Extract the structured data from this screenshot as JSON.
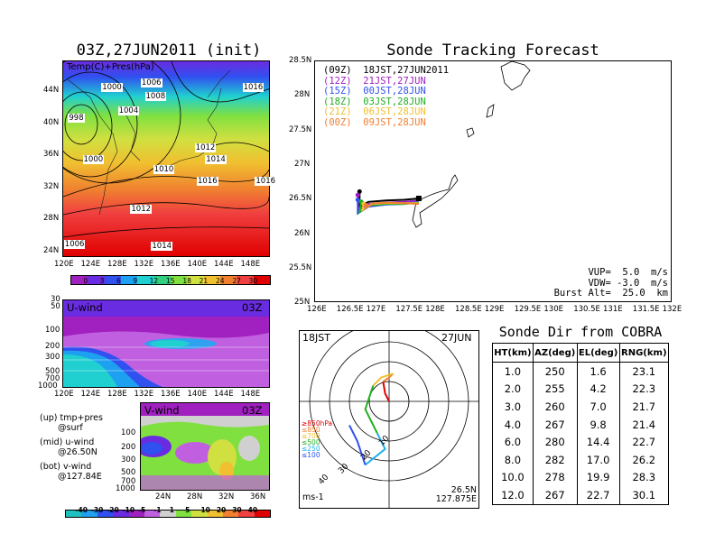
{
  "map_panel": {
    "title": "03Z,27JUN2011 (init)",
    "label": "Temp(C)+Pres(hPa)",
    "lat_ticks": [
      "44N",
      "40N",
      "36N",
      "32N",
      "28N",
      "24N"
    ],
    "lon_ticks": [
      "120E",
      "124E",
      "128E",
      "132E",
      "136E",
      "140E",
      "144E",
      "148E"
    ],
    "pressure_labels": [
      {
        "text": "1000",
        "rx": 0.24,
        "ry": 0.14
      },
      {
        "text": "1006",
        "rx": 0.43,
        "ry": 0.12
      },
      {
        "text": "1008",
        "rx": 0.45,
        "ry": 0.19
      },
      {
        "text": "1004",
        "rx": 0.32,
        "ry": 0.26
      },
      {
        "text": "998",
        "rx": 0.08,
        "ry": 0.3
      },
      {
        "text": "1000",
        "rx": 0.15,
        "ry": 0.51
      },
      {
        "text": "1012",
        "rx": 0.69,
        "ry": 0.45
      },
      {
        "text": "1014",
        "rx": 0.74,
        "ry": 0.51
      },
      {
        "text": "1010",
        "rx": 0.49,
        "ry": 0.56
      },
      {
        "text": "1016",
        "rx": 0.7,
        "ry": 0.62
      },
      {
        "text": "1016",
        "rx": 0.92,
        "ry": 0.14
      },
      {
        "text": "1016",
        "rx": 0.98,
        "ry": 0.62
      },
      {
        "text": "1012",
        "rx": 0.38,
        "ry": 0.76
      },
      {
        "text": "1014",
        "rx": 0.48,
        "ry": 0.95
      },
      {
        "text": "1006",
        "rx": 0.06,
        "ry": 0.94
      }
    ],
    "colorbar_labels": [
      "0",
      "3",
      "6",
      "9",
      "12",
      "15",
      "18",
      "21",
      "24",
      "27",
      "30"
    ],
    "colorbar_colors": [
      "#a020c0",
      "#6a2ce0",
      "#3050f0",
      "#1ea0f0",
      "#20d0d0",
      "#30d080",
      "#80e040",
      "#d0e040",
      "#f0c030",
      "#f08030",
      "#f04040",
      "#e00000"
    ]
  },
  "u_panel": {
    "label": "U-wind",
    "time": "03Z",
    "pressure_ticks": [
      "30",
      "50",
      "100",
      "200",
      "300",
      "500",
      "700",
      "1000"
    ],
    "lon_ticks": [
      "120E",
      "124E",
      "128E",
      "132E",
      "136E",
      "140E",
      "144E",
      "148E"
    ]
  },
  "v_panel": {
    "label": "V-wind",
    "time": "03Z",
    "pressure_ticks": [
      "100",
      "200",
      "300",
      "500",
      "700",
      "1000"
    ],
    "lat_ticks": [
      "24N",
      "28N",
      "32N",
      "36N"
    ],
    "colorbar_labels": [
      "-40",
      "-30",
      "-20",
      "-10",
      "-5",
      "-1",
      "1",
      "5",
      "10",
      "20",
      "30",
      "40"
    ],
    "colorbar_colors": [
      "#20c0c0",
      "#20a0f0",
      "#3050f0",
      "#6a2ce0",
      "#a020c0",
      "#c060e0",
      "#d0d0d0",
      "#80e040",
      "#d0e040",
      "#f0c030",
      "#f08030",
      "#f04040",
      "#e00000"
    ]
  },
  "legend_notes": [
    "(up) tmp+pres",
    "@surf",
    "(mid) u-wind",
    "@26.50N",
    "(bot) v-wind",
    "@127.84E"
  ],
  "track_panel": {
    "title": "Sonde Tracking Forecast",
    "lat_ticks": [
      "28.5N",
      "28N",
      "27.5N",
      "27N",
      "26.5N",
      "26N",
      "25.5N",
      "25N"
    ],
    "lon_ticks": [
      "126E",
      "126.5E",
      "127E",
      "127.5E",
      "128E",
      "128.5E",
      "129E",
      "129.5E",
      "130E",
      "130.5E",
      "131E",
      "131.5E",
      "132E"
    ],
    "legend": [
      {
        "text": "(09Z)  18JST,27JUN2011",
        "color": "#000000"
      },
      {
        "text": "(12Z)  21JST,27JUN",
        "color": "#a020c0"
      },
      {
        "text": "(15Z)  00JST,28JUN",
        "color": "#3050f0"
      },
      {
        "text": "(18Z)  03JST,28JUN",
        "color": "#20b020"
      },
      {
        "text": "(21Z)  06JST,28JUN",
        "color": "#f0c030"
      },
      {
        "text": "(00Z)  09JST,28JUN",
        "color": "#f08030"
      }
    ],
    "params": [
      "VUP=  5.0  m/s",
      "VDW= -3.0  m/s",
      "Burst Alt=  25.0  km"
    ]
  },
  "polar_panel": {
    "time_left": "18JST",
    "date_right": "27JUN",
    "ring_labels": [
      "10",
      "20",
      "30",
      "40"
    ],
    "level_legend": [
      {
        "text": "≥850hPa",
        "color": "#e00000"
      },
      {
        "text": "≤850",
        "color": "#f08030"
      },
      {
        "text": "≤700",
        "color": "#f0c030"
      },
      {
        "text": "≤500",
        "color": "#20b020"
      },
      {
        "text": "≤250",
        "color": "#20b0f0"
      },
      {
        "text": "≤100",
        "color": "#3050f0"
      }
    ],
    "unit": "ms-1",
    "lat": "26.5N",
    "lon": "127.875E"
  },
  "sonde_dir": {
    "title": "Sonde Dir from COBRA",
    "headers": [
      "HT(km)",
      "AZ(deg)",
      "EL(deg)",
      "RNG(km)"
    ],
    "rows": [
      [
        "1.0",
        "250",
        "1.6",
        "23.1"
      ],
      [
        "2.0",
        "255",
        "4.2",
        "22.3"
      ],
      [
        "3.0",
        "260",
        "7.0",
        "21.7"
      ],
      [
        "4.0",
        "267",
        "9.8",
        "21.4"
      ],
      [
        "6.0",
        "280",
        "14.4",
        "22.7"
      ],
      [
        "8.0",
        "282",
        "17.0",
        "26.2"
      ],
      [
        "10.0",
        "278",
        "19.9",
        "28.3"
      ],
      [
        "12.0",
        "267",
        "22.7",
        "30.1"
      ]
    ]
  },
  "chart_data": [
    {
      "type": "heatmap",
      "title": "03Z,27JUN2011 (init)",
      "subtitle": "Temp(C)+Pres(hPa)",
      "xlim": [
        120,
        150
      ],
      "ylim": [
        22,
        47
      ],
      "colorbar": [
        0,
        3,
        6,
        9,
        12,
        15,
        18,
        21,
        24,
        27,
        30
      ]
    },
    {
      "type": "heatmap",
      "title": "U-wind",
      "xlim": [
        120,
        150
      ],
      "y_levels_hPa": [
        30,
        50,
        100,
        200,
        300,
        500,
        700,
        1000
      ]
    },
    {
      "type": "heatmap",
      "title": "V-wind",
      "xlim": [
        22,
        38
      ],
      "y_levels_hPa": [
        100,
        200,
        300,
        500,
        700,
        1000
      ],
      "colorbar": [
        -40,
        -30,
        -20,
        -10,
        -5,
        -1,
        1,
        5,
        10,
        20,
        30,
        40
      ]
    },
    {
      "type": "line",
      "title": "Sonde Tracking Forecast",
      "xlim": [
        126,
        132
      ],
      "ylim": [
        25,
        28.5
      ],
      "series": [
        {
          "name": "(09Z)  18JST,27JUN2011",
          "color": "#000000",
          "x": [
            127.75,
            127.5,
            127.2,
            126.9,
            126.75,
            126.75
          ],
          "y": [
            26.5,
            26.48,
            26.47,
            26.45,
            26.38,
            26.6
          ]
        },
        {
          "name": "(12Z)  21JST,27JUN",
          "color": "#a020c0",
          "x": [
            127.75,
            127.5,
            127.2,
            126.9,
            126.73,
            126.72
          ],
          "y": [
            26.47,
            26.45,
            26.44,
            26.42,
            26.33,
            26.55
          ]
        },
        {
          "name": "(15Z)  00JST,28JUN",
          "color": "#3050f0",
          "x": [
            127.75,
            127.5,
            127.2,
            126.9,
            126.72,
            126.72
          ],
          "y": [
            26.45,
            26.42,
            26.41,
            26.38,
            26.28,
            26.48
          ]
        },
        {
          "name": "(18Z)  03JST,28JUN",
          "color": "#20b020",
          "x": [
            127.75,
            127.5,
            127.2,
            126.92,
            126.75,
            126.78
          ],
          "y": [
            26.44,
            26.42,
            26.42,
            26.4,
            26.3,
            26.45
          ]
        },
        {
          "name": "(21Z)  06JST,28JUN",
          "color": "#f0c030",
          "x": [
            127.75,
            127.5,
            127.2,
            126.95,
            126.8,
            126.82
          ],
          "y": [
            26.43,
            26.43,
            26.43,
            26.42,
            26.33,
            26.42
          ]
        },
        {
          "name": "(00Z)  09JST,28JUN",
          "color": "#f08030",
          "x": [
            127.75,
            127.5,
            127.25,
            127.0,
            126.85,
            126.86
          ],
          "y": [
            26.42,
            26.43,
            26.44,
            26.43,
            26.36,
            26.4
          ]
        }
      ]
    },
    {
      "type": "line",
      "subtitle": "18JST 27JUN",
      "ring_labels": [
        10,
        20,
        30,
        40
      ],
      "series": [
        {
          "color": "#e00000",
          "u": [
            0,
            -1,
            -1.5
          ],
          "v": [
            0,
            2,
            5
          ]
        },
        {
          "color": "#f08030",
          "u": [
            -1.5,
            0,
            1
          ],
          "v": [
            5,
            6,
            7
          ]
        },
        {
          "color": "#f0c030",
          "u": [
            1,
            -2,
            -4
          ],
          "v": [
            7,
            6,
            4
          ]
        },
        {
          "color": "#20b020",
          "u": [
            -4,
            -6,
            -3
          ],
          "v": [
            4,
            -2,
            -8
          ]
        },
        {
          "color": "#20b0f0",
          "u": [
            -3,
            -1,
            -6
          ],
          "v": [
            -8,
            -12,
            -16
          ]
        },
        {
          "color": "#3050f0",
          "u": [
            -6,
            -8,
            -10
          ],
          "v": [
            -16,
            -10,
            -6
          ]
        }
      ]
    },
    {
      "type": "table",
      "title": "Sonde Dir from COBRA",
      "columns": [
        "HT(km)",
        "AZ(deg)",
        "EL(deg)",
        "RNG(km)"
      ],
      "rows": [
        [
          1.0,
          250,
          1.6,
          23.1
        ],
        [
          2.0,
          255,
          4.2,
          22.3
        ],
        [
          3.0,
          260,
          7.0,
          21.7
        ],
        [
          4.0,
          267,
          9.8,
          21.4
        ],
        [
          6.0,
          280,
          14.4,
          22.7
        ],
        [
          8.0,
          282,
          17.0,
          26.2
        ],
        [
          10.0,
          278,
          19.9,
          28.3
        ],
        [
          12.0,
          267,
          22.7,
          30.1
        ]
      ]
    }
  ]
}
